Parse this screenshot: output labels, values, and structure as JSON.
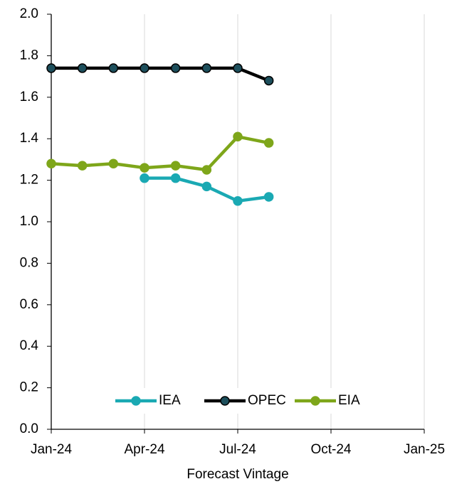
{
  "chart_data": {
    "type": "line",
    "x_label": "Forecast Vintage",
    "x": [
      "2024-01",
      "2024-02",
      "2024-03",
      "2024-04",
      "2024-05",
      "2024-06",
      "2024-07",
      "2024-08"
    ],
    "xlim": [
      "2024-01",
      "2025-01"
    ],
    "xticks": [
      {
        "value": "2024-01",
        "label": "Jan-24"
      },
      {
        "value": "2024-04",
        "label": "Apr-24"
      },
      {
        "value": "2024-07",
        "label": "Jul-24"
      },
      {
        "value": "2024-10",
        "label": "Oct-24"
      },
      {
        "value": "2025-01",
        "label": "Jan-25"
      }
    ],
    "ylim": [
      0,
      2
    ],
    "yticks": [
      {
        "value": 0,
        "label": "0.0"
      },
      0.2,
      0.4,
      0.6,
      0.8,
      {
        "value": 1,
        "label": "1.0"
      },
      1.2,
      1.4,
      1.6,
      1.8,
      {
        "value": 2,
        "label": "2.0"
      }
    ],
    "grid": "x",
    "legend": "bottom",
    "series": [
      {
        "name": "IEA",
        "color": "#1aa9b3",
        "marker_color": "#1aa9b3",
        "values": [
          null,
          null,
          null,
          1.21,
          1.21,
          1.17,
          1.1,
          1.12
        ]
      },
      {
        "name": "OPEC",
        "color": "#000000",
        "marker_color": "#1d4f5c",
        "values": [
          1.74,
          1.74,
          1.74,
          1.74,
          1.74,
          1.74,
          1.74,
          1.68
        ]
      },
      {
        "name": "EIA",
        "color": "#7ea61a",
        "marker_color": "#7ea61a",
        "values": [
          1.28,
          1.27,
          1.28,
          1.26,
          1.27,
          1.25,
          1.41,
          1.38
        ]
      }
    ]
  }
}
